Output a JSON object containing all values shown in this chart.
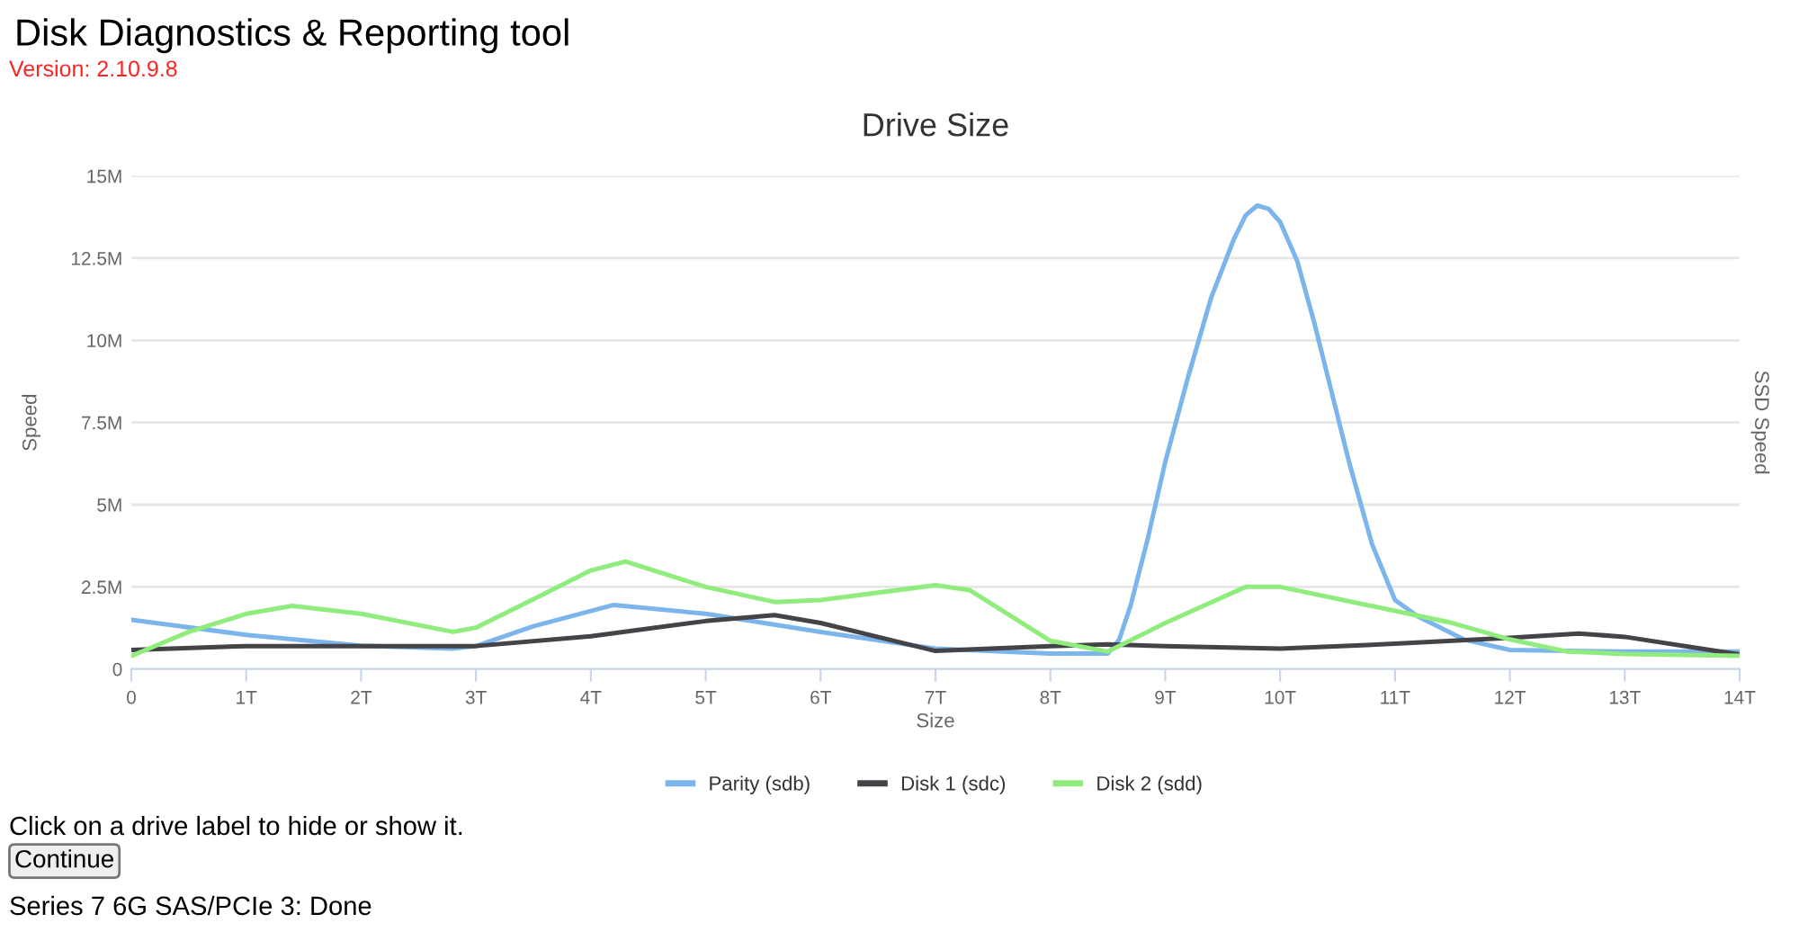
{
  "chart_data": {
    "type": "line",
    "title": "Drive Size",
    "xlabel": "Size",
    "ylabel": "Speed",
    "y2label": "SSD Speed",
    "annotations": [
      "Disk Diagnostics & Reporting tool",
      "Version: 2.10.9.8",
      "Click on a drive label to hide or show it.",
      "Continue",
      "Series 7 6G SAS/PCIe 3: Done"
    ],
    "series": [
      {
        "name": "Parity (sdb)",
        "color": "#7cb5ec",
        "x": [
          0,
          1,
          2,
          2.8,
          3,
          3.5,
          4.2,
          5,
          6,
          7,
          8,
          8.5,
          8.6,
          8.7,
          8.85,
          9,
          9.2,
          9.4,
          9.6,
          9.7,
          9.8,
          9.9,
          10.0,
          10.15,
          10.3,
          10.45,
          10.6,
          10.8,
          11,
          11.2,
          11.6,
          12,
          13,
          14
        ],
        "values": [
          1.5,
          1.04,
          0.71,
          0.62,
          0.7,
          1.3,
          1.95,
          1.68,
          1.13,
          0.62,
          0.47,
          0.47,
          0.9,
          1.95,
          4.0,
          6.3,
          8.9,
          11.3,
          13.1,
          13.8,
          14.1,
          14.0,
          13.6,
          12.4,
          10.5,
          8.4,
          6.3,
          3.8,
          2.1,
          1.6,
          0.9,
          0.58,
          0.53,
          0.53
        ]
      },
      {
        "name": "Disk 1 (sdc)",
        "color": "#434348",
        "x": [
          0,
          1,
          2,
          3,
          4,
          5,
          5.6,
          6,
          7,
          8,
          8.5,
          9,
          10,
          11,
          12,
          12.6,
          13,
          14
        ],
        "values": [
          0.58,
          0.7,
          0.7,
          0.7,
          1.0,
          1.46,
          1.64,
          1.4,
          0.55,
          0.7,
          0.75,
          0.7,
          0.62,
          0.77,
          0.95,
          1.08,
          0.98,
          0.44
        ]
      },
      {
        "name": "Disk 2 (sdd)",
        "color": "#90ed7d",
        "x": [
          0,
          0.5,
          1,
          1.4,
          2,
          2.8,
          3,
          3.6,
          4,
          4.3,
          5,
          5.6,
          6,
          7,
          7.3,
          8,
          8.5,
          9,
          9.7,
          10,
          11,
          11.5,
          12,
          12.5,
          13,
          14
        ],
        "values": [
          0.4,
          1.13,
          1.68,
          1.92,
          1.68,
          1.13,
          1.26,
          2.3,
          3.0,
          3.27,
          2.5,
          2.04,
          2.1,
          2.55,
          2.4,
          0.86,
          0.53,
          1.4,
          2.5,
          2.5,
          1.77,
          1.4,
          0.9,
          0.53,
          0.46,
          0.4
        ]
      }
    ],
    "xlim": [
      0,
      14
    ],
    "ylim": [
      0,
      15
    ],
    "xticks": [
      0,
      {
        "value": 1,
        "label": "1T"
      },
      {
        "value": 2,
        "label": "2T"
      },
      {
        "value": 3,
        "label": "3T"
      },
      {
        "value": 4,
        "label": "4T"
      },
      {
        "value": 5,
        "label": "5T"
      },
      {
        "value": 6,
        "label": "6T"
      },
      {
        "value": 7,
        "label": "7T"
      },
      {
        "value": 8,
        "label": "8T"
      },
      {
        "value": 9,
        "label": "9T"
      },
      {
        "value": 10,
        "label": "10T"
      },
      {
        "value": 11,
        "label": "11T"
      },
      {
        "value": 12,
        "label": "12T"
      },
      {
        "value": 13,
        "label": "13T"
      },
      {
        "value": 14,
        "label": "14T"
      }
    ],
    "yticks": [
      0,
      {
        "value": 2.5,
        "label": "2.5M"
      },
      {
        "value": 5,
        "label": "5M"
      },
      {
        "value": 7.5,
        "label": "7.5M"
      },
      {
        "value": 10,
        "label": "10M"
      },
      {
        "value": 12.5,
        "label": "12.5M"
      },
      {
        "value": 15,
        "label": "15M"
      }
    ],
    "grid": "y",
    "legend": "bottom",
    "marker": "none",
    "line_style": "solid"
  }
}
